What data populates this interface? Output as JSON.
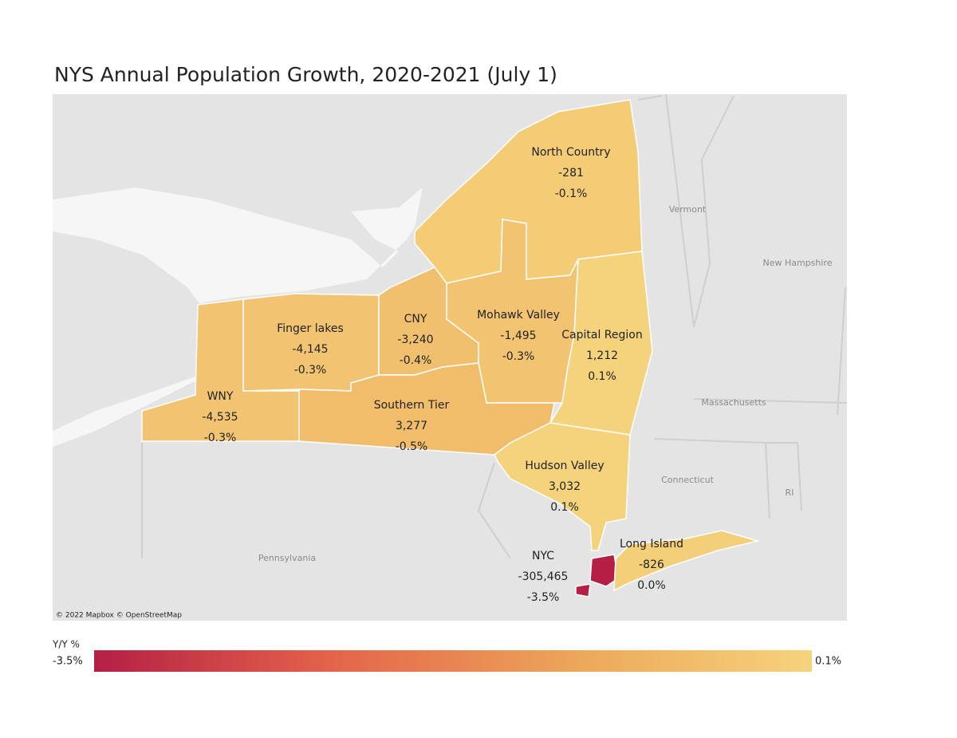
{
  "title": "NYS Annual Population Growth, 2020-2021 (July 1)",
  "map": {
    "attribution": "© 2022 Mapbox © OpenStreetMap",
    "places": [
      "Vermont",
      "New Hampshire",
      "Massachusetts",
      "Connecticut",
      "RI",
      "Pennsylvania"
    ]
  },
  "regions": [
    {
      "name": "North Country",
      "change": -281,
      "growth": {
        "value": -0.1,
        "label": "-0.1%"
      }
    },
    {
      "name": "Finger lakes",
      "change": {
        "value": -4145,
        "label": "-4,145"
      },
      "growth": {
        "value": -0.3,
        "label": "-0.3%"
      }
    },
    {
      "name": "CNY",
      "change": {
        "value": -3240,
        "label": "-3,240"
      },
      "growth": {
        "value": -0.4,
        "label": "-0.4%"
      }
    },
    {
      "name": "Mohawk Valley",
      "change": {
        "value": -1495,
        "label": "-1,495"
      },
      "growth": {
        "value": -0.3,
        "label": "-0.3%"
      }
    },
    {
      "name": "Capital Region",
      "change": {
        "value": 1212,
        "label": "1,212"
      },
      "growth": {
        "value": 0.1,
        "label": "0.1%"
      }
    },
    {
      "name": "WNY",
      "change": {
        "value": -4535,
        "label": "-4,535"
      },
      "growth": {
        "value": -0.3,
        "label": "-0.3%"
      }
    },
    {
      "name": "Southern Tier",
      "change": {
        "value": 3277,
        "label": "3,277"
      },
      "growth": {
        "value": -0.5,
        "label": "-0.5%"
      }
    },
    {
      "name": "Hudson Valley",
      "change": {
        "value": 3032,
        "label": "3,032"
      },
      "growth": {
        "value": 0.1,
        "label": "0.1%"
      }
    },
    {
      "name": "NYC",
      "change": {
        "value": -305465,
        "label": "-305,465"
      },
      "growth": {
        "value": -3.5,
        "label": "-3.5%"
      }
    },
    {
      "name": "Long Island",
      "change": -826,
      "growth": {
        "value": 0.0,
        "label": "0.0%"
      }
    }
  ],
  "legend": {
    "title": "Y/Y %",
    "min": {
      "value": -3.5,
      "label": "-3.5%"
    },
    "max": {
      "value": 0.1,
      "label": "0.1%"
    },
    "colors": [
      "#b51f45",
      "#e4644a",
      "#eca65a",
      "#f5d37c"
    ]
  }
}
